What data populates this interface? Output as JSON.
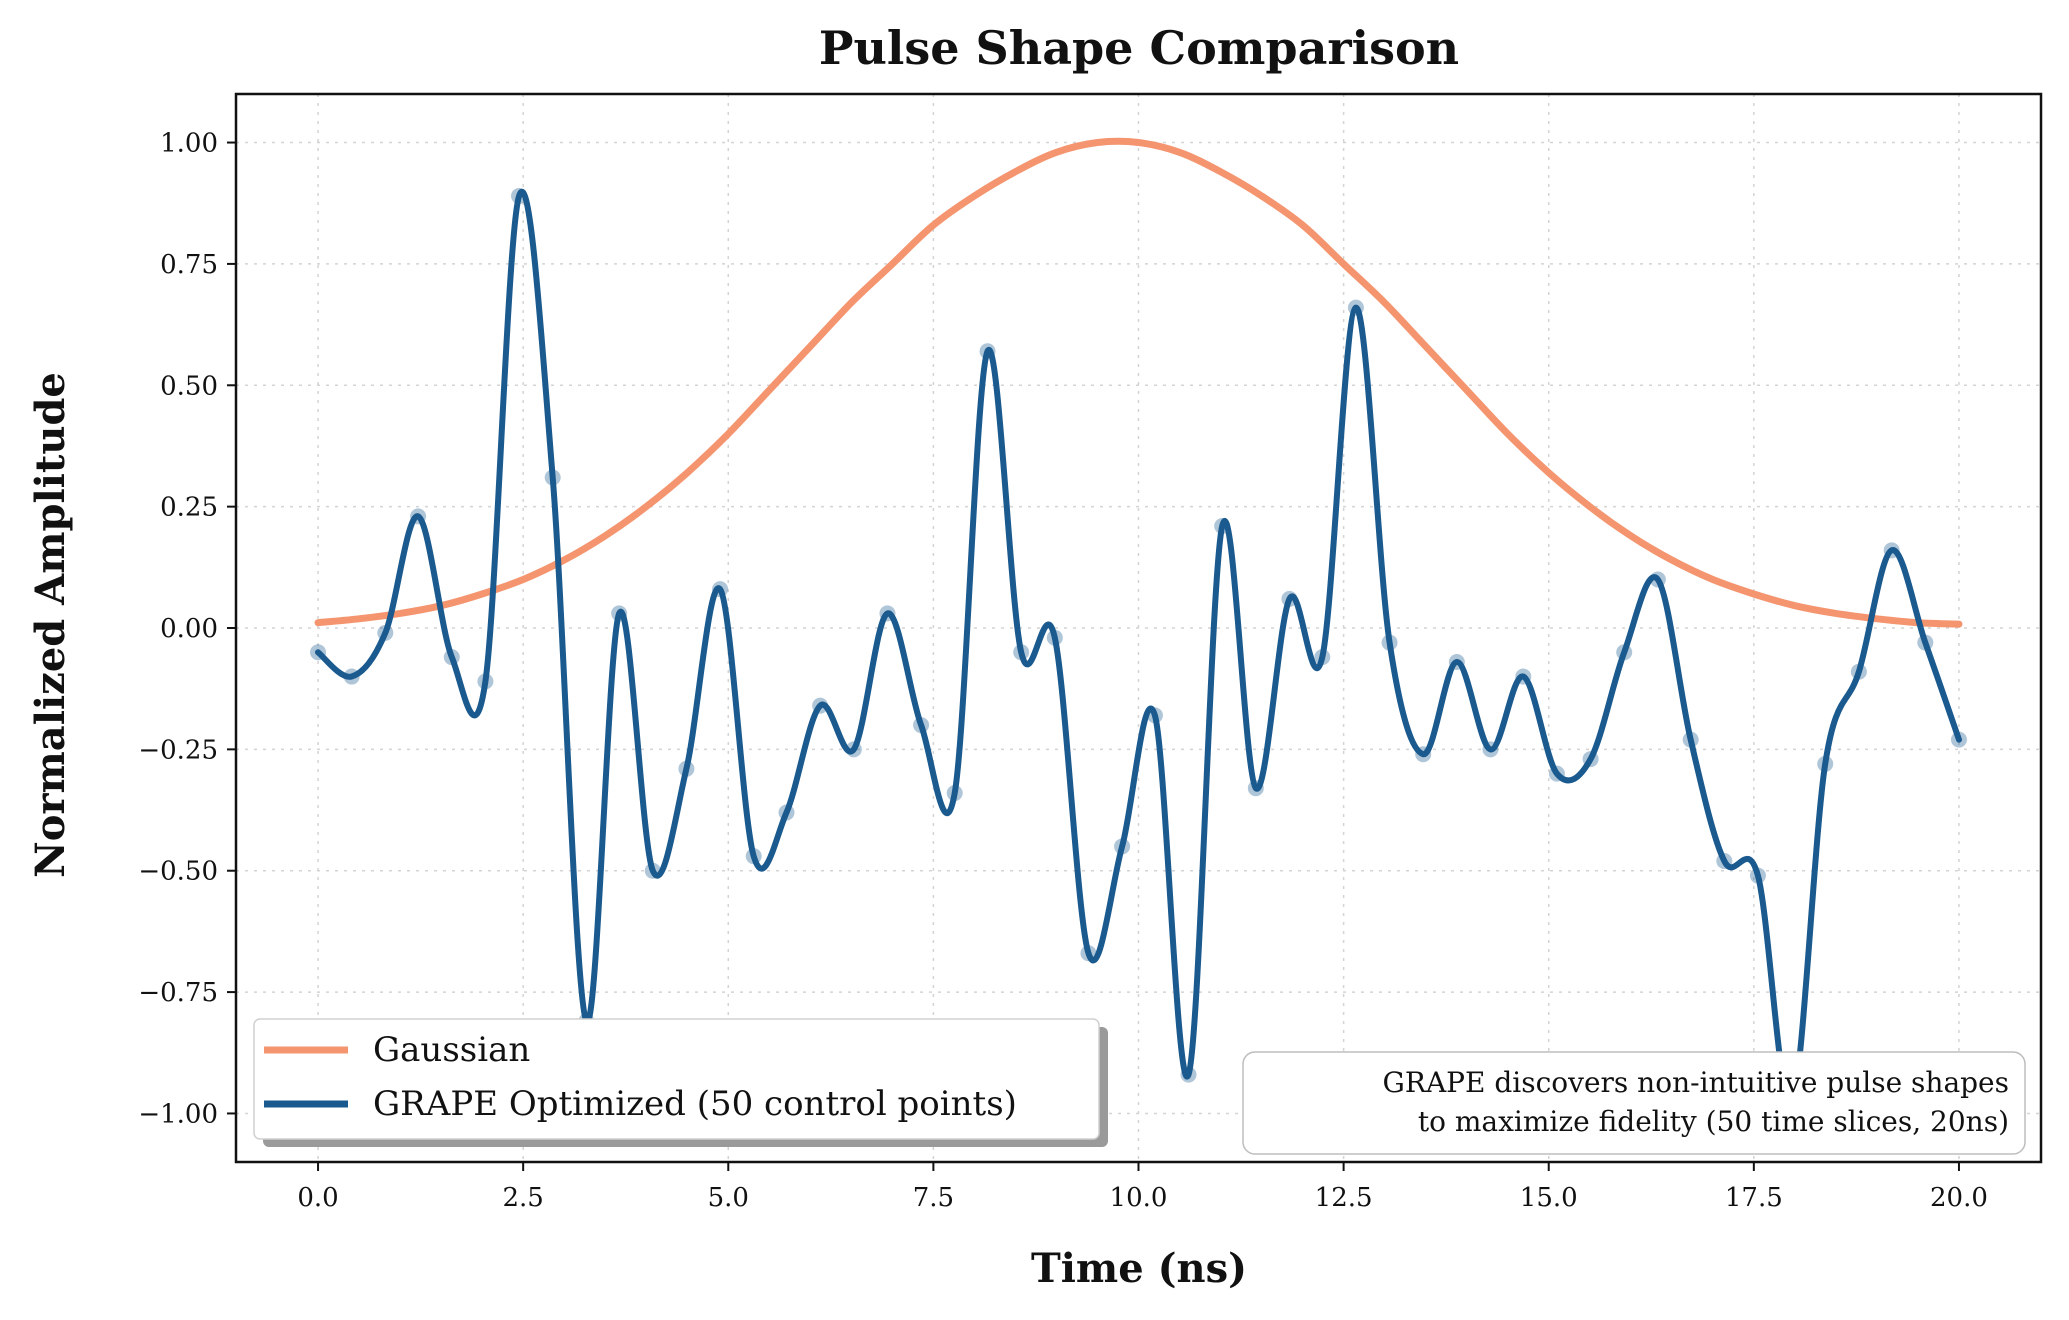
{
  "chart_data": {
    "type": "line",
    "title": "Pulse Shape Comparison",
    "xlabel": "Time (ns)",
    "ylabel": "Normalized Amplitude",
    "xlim": [
      -1.0,
      21.0
    ],
    "ylim": [
      -1.1,
      1.1
    ],
    "x_ticks": [
      0.0,
      2.5,
      5.0,
      7.5,
      10.0,
      12.5,
      15.0,
      17.5,
      20.0
    ],
    "x_tick_labels": [
      "0.0",
      "2.5",
      "5.0",
      "7.5",
      "10.0",
      "12.5",
      "15.0",
      "17.5",
      "20.0"
    ],
    "y_ticks": [
      -1.0,
      -0.75,
      -0.5,
      -0.25,
      0.0,
      0.25,
      0.5,
      0.75,
      1.0
    ],
    "y_tick_labels": [
      "−1.00",
      "−0.75",
      "−0.50",
      "−0.25",
      "0.00",
      "0.25",
      "0.50",
      "0.75",
      "1.00"
    ],
    "grid": true,
    "legend_position": "lower-left",
    "series": [
      {
        "name": "Gaussian",
        "color": "#f4956f",
        "style": "line",
        "x": [
          0.0,
          0.5,
          1.0,
          1.5,
          2.0,
          2.5,
          3.0,
          3.5,
          4.0,
          4.5,
          5.0,
          5.5,
          6.0,
          6.5,
          7.0,
          7.5,
          8.0,
          8.5,
          9.0,
          9.5,
          10.0,
          10.5,
          11.0,
          11.5,
          12.0,
          12.5,
          13.0,
          13.5,
          14.0,
          14.5,
          15.0,
          15.5,
          16.0,
          16.5,
          17.0,
          17.5,
          18.0,
          18.5,
          19.0,
          19.5,
          20.0
        ],
        "y": [
          0.011,
          0.019,
          0.03,
          0.046,
          0.07,
          0.1,
          0.14,
          0.19,
          0.25,
          0.32,
          0.4,
          0.49,
          0.58,
          0.67,
          0.75,
          0.83,
          0.89,
          0.94,
          0.98,
          1.0,
          1.0,
          0.98,
          0.94,
          0.89,
          0.83,
          0.75,
          0.67,
          0.58,
          0.49,
          0.4,
          0.32,
          0.25,
          0.19,
          0.14,
          0.1,
          0.07,
          0.046,
          0.03,
          0.019,
          0.011,
          0.008
        ]
      },
      {
        "name": "GRAPE Optimized (50 control points)",
        "color": "#1a5a8e",
        "style": "line+markers",
        "x": [
          0.0,
          0.41,
          0.82,
          1.22,
          1.63,
          2.04,
          2.45,
          2.86,
          3.27,
          3.67,
          4.08,
          4.49,
          4.9,
          5.31,
          5.71,
          6.12,
          6.53,
          6.94,
          7.35,
          7.76,
          8.16,
          8.57,
          8.98,
          9.39,
          9.8,
          10.2,
          10.61,
          11.02,
          11.43,
          11.84,
          12.24,
          12.65,
          13.06,
          13.47,
          13.88,
          14.29,
          14.69,
          15.1,
          15.51,
          15.92,
          16.33,
          16.73,
          17.14,
          17.55,
          17.96,
          18.37,
          18.78,
          19.18,
          19.59,
          20.0
        ],
        "y": [
          -0.05,
          -0.1,
          -0.01,
          0.23,
          -0.06,
          -0.11,
          0.89,
          0.31,
          -0.81,
          0.03,
          -0.5,
          -0.29,
          0.08,
          -0.47,
          -0.38,
          -0.16,
          -0.25,
          0.03,
          -0.2,
          -0.34,
          0.57,
          -0.05,
          -0.02,
          -0.67,
          -0.45,
          -0.18,
          -0.92,
          0.21,
          -0.33,
          0.06,
          -0.06,
          0.66,
          -0.03,
          -0.26,
          -0.07,
          -0.25,
          -0.1,
          -0.3,
          -0.27,
          -0.05,
          0.1,
          -0.23,
          -0.48,
          -0.51,
          -0.98,
          -0.28,
          -0.09,
          0.16,
          -0.03,
          -0.23
        ]
      }
    ],
    "annotation": {
      "lines": [
        "GRAPE discovers non-intuitive pulse shapes",
        "to maximize fidelity (50 time slices, 20ns)"
      ],
      "position": "bottom-right"
    }
  }
}
